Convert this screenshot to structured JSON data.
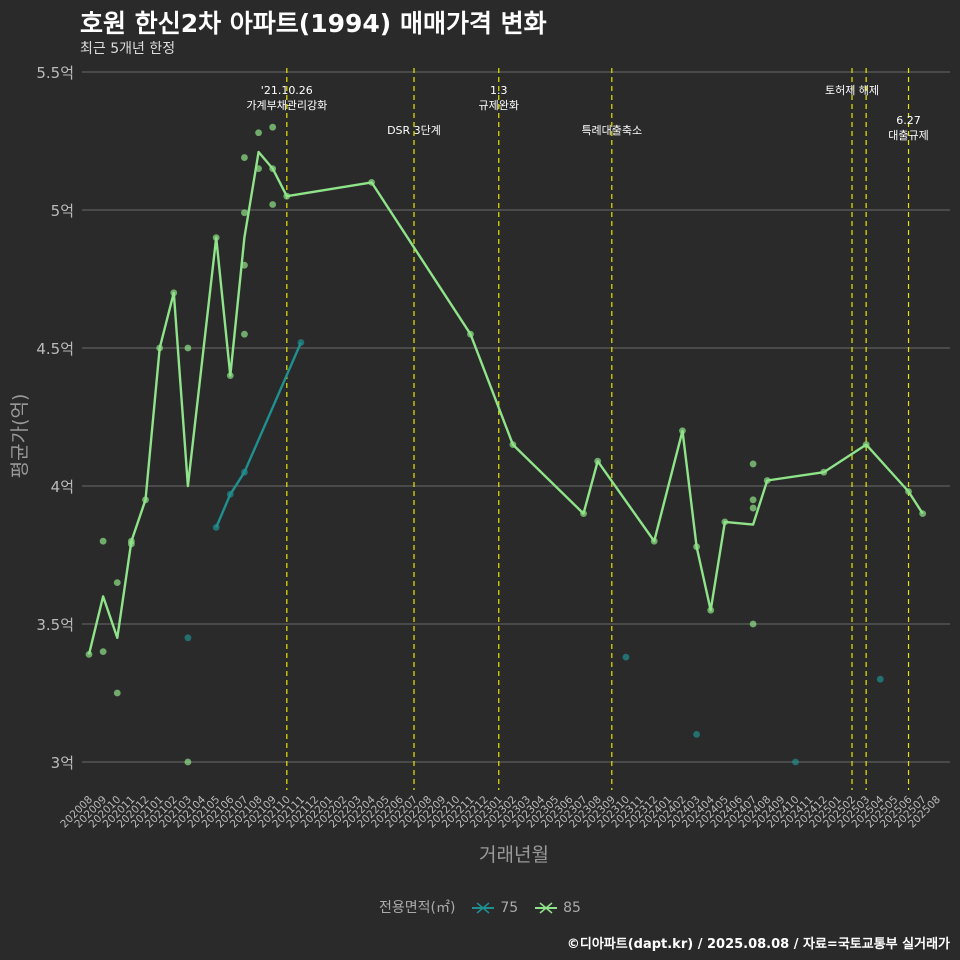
{
  "title": "호원 한신2차 아파트(1994) 매매가격 변화",
  "subtitle": "최근 5개년 한정",
  "credit": "©디아파트(dapt.kr) / 2025.08.08 / 자료=국토교통부 실거래가",
  "colors": {
    "background": "#2a2a2b",
    "grid": "#6b6b6b",
    "event_line": "#e6e600",
    "series_75": "#1f8f8f",
    "series_85": "#8fe388"
  },
  "chart_data": {
    "type": "line",
    "xlabel": "거래년월",
    "ylabel": "평균가(억)",
    "ylim": [
      2.9,
      5.5
    ],
    "y_ticks": [
      3,
      3.5,
      4,
      4.5,
      5,
      5.5
    ],
    "y_tick_labels": [
      "3억",
      "3.5억",
      "4억",
      "4.5억",
      "5억",
      "5.5억"
    ],
    "grid": true,
    "legend_position": "bottom",
    "legend_title": "전용면적(㎡)",
    "x_categories": [
      "202008",
      "202009",
      "202010",
      "202011",
      "202012",
      "202101",
      "202102",
      "202103",
      "202104",
      "202105",
      "202106",
      "202107",
      "202108",
      "202109",
      "202110",
      "202111",
      "202112",
      "202201",
      "202202",
      "202203",
      "202204",
      "202205",
      "202206",
      "202207",
      "202208",
      "202209",
      "202210",
      "202211",
      "202212",
      "202301",
      "202302",
      "202303",
      "202304",
      "202305",
      "202306",
      "202307",
      "202308",
      "202309",
      "202310",
      "202311",
      "202312",
      "202401",
      "202402",
      "202403",
      "202404",
      "202405",
      "202406",
      "202407",
      "202408",
      "202409",
      "202410",
      "202411",
      "202412",
      "202501",
      "202502",
      "202503",
      "202504",
      "202505",
      "202506",
      "202507",
      "202508"
    ],
    "events": [
      {
        "x": "202110",
        "label": "'21.10.26\n가계부채관리강화",
        "row": 0
      },
      {
        "x": "202207",
        "label": "DSR 3단계",
        "row": 1
      },
      {
        "x": "202301",
        "label": "1.3\n규제완화",
        "row": 0
      },
      {
        "x": "202309",
        "label": "특례대출축소",
        "row": 1
      },
      {
        "x": "202502",
        "label": "토허제 해제",
        "row": 0
      },
      {
        "x": "202503",
        "label": "",
        "row": 0
      },
      {
        "x": "202506",
        "label": "6.27\n대출규제",
        "row": 2
      }
    ],
    "series": [
      {
        "name": "75",
        "line": [
          [
            "202105",
            3.85
          ],
          [
            "202106",
            3.97
          ],
          [
            "202107",
            4.05
          ],
          [
            "202111",
            4.52
          ]
        ],
        "points": [
          [
            "202103",
            3.45
          ],
          [
            "202105",
            3.85
          ],
          [
            "202106",
            3.97
          ],
          [
            "202107",
            4.05
          ],
          [
            "202111",
            4.52
          ],
          [
            "202310",
            3.38
          ],
          [
            "202403",
            3.1
          ],
          [
            "202410",
            3.0
          ],
          [
            "202504",
            3.3
          ]
        ]
      },
      {
        "name": "85",
        "line": [
          [
            "202008",
            3.39
          ],
          [
            "202009",
            3.6
          ],
          [
            "202010",
            3.45
          ],
          [
            "202011",
            3.8
          ],
          [
            "202012",
            3.95
          ],
          [
            "202101",
            4.5
          ],
          [
            "202102",
            4.7
          ],
          [
            "202103",
            4.0
          ],
          [
            "202105",
            4.9
          ],
          [
            "202106",
            4.4
          ],
          [
            "202107",
            4.9
          ],
          [
            "202108",
            5.21
          ],
          [
            "202109",
            5.15
          ],
          [
            "202110",
            5.05
          ],
          [
            "202204",
            5.1
          ],
          [
            "202211",
            4.55
          ],
          [
            "202302",
            4.15
          ],
          [
            "202307",
            3.9
          ],
          [
            "202308",
            4.09
          ],
          [
            "202312",
            3.8
          ],
          [
            "202402",
            4.2
          ],
          [
            "202403",
            3.78
          ],
          [
            "202404",
            3.55
          ],
          [
            "202405",
            3.87
          ],
          [
            "202407",
            3.86
          ],
          [
            "202408",
            4.02
          ],
          [
            "202412",
            4.05
          ],
          [
            "202503",
            4.15
          ],
          [
            "202506",
            3.98
          ],
          [
            "202507",
            3.9
          ]
        ],
        "points": [
          [
            "202008",
            3.39
          ],
          [
            "202009",
            3.4
          ],
          [
            "202009",
            3.8
          ],
          [
            "202010",
            3.25
          ],
          [
            "202010",
            3.65
          ],
          [
            "202011",
            3.8
          ],
          [
            "202011",
            3.79
          ],
          [
            "202012",
            3.95
          ],
          [
            "202101",
            4.5
          ],
          [
            "202102",
            4.7
          ],
          [
            "202103",
            4.5
          ],
          [
            "202103",
            3.0
          ],
          [
            "202105",
            4.9
          ],
          [
            "202106",
            4.4
          ],
          [
            "202107",
            5.19
          ],
          [
            "202107",
            4.99
          ],
          [
            "202107",
            4.8
          ],
          [
            "202107",
            4.55
          ],
          [
            "202108",
            5.28
          ],
          [
            "202108",
            5.15
          ],
          [
            "202109",
            5.3
          ],
          [
            "202109",
            5.15
          ],
          [
            "202109",
            5.02
          ],
          [
            "202110",
            5.05
          ],
          [
            "202204",
            5.1
          ],
          [
            "202211",
            4.55
          ],
          [
            "202302",
            4.15
          ],
          [
            "202307",
            3.9
          ],
          [
            "202308",
            4.09
          ],
          [
            "202312",
            3.8
          ],
          [
            "202402",
            4.2
          ],
          [
            "202403",
            3.78
          ],
          [
            "202404",
            3.55
          ],
          [
            "202405",
            3.87
          ],
          [
            "202407",
            4.08
          ],
          [
            "202407",
            3.95
          ],
          [
            "202407",
            3.92
          ],
          [
            "202407",
            3.5
          ],
          [
            "202408",
            4.02
          ],
          [
            "202412",
            4.05
          ],
          [
            "202503",
            4.15
          ],
          [
            "202506",
            3.98
          ],
          [
            "202507",
            3.9
          ]
        ]
      }
    ]
  }
}
